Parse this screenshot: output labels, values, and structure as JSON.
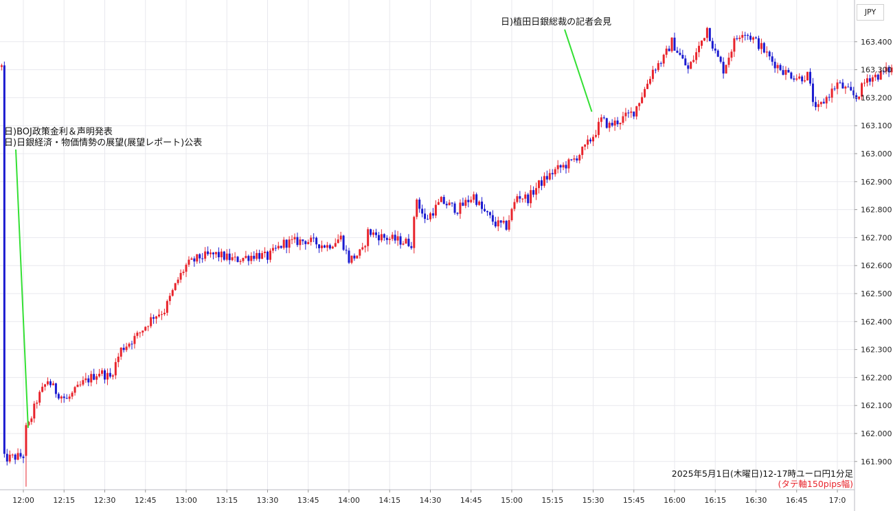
{
  "currency_label": "JPY",
  "caption": {
    "line1": "2025年5月1日(木曜日)12-17時ユーロ円1分足",
    "line2": "(タテ軸150pips幅)"
  },
  "chart_data": {
    "type": "candlestick",
    "x_ticks": [
      "12:00",
      "12:15",
      "12:30",
      "12:45",
      "13:00",
      "13:15",
      "13:30",
      "13:45",
      "14:00",
      "14:15",
      "14:30",
      "14:45",
      "15:00",
      "15:15",
      "15:30",
      "15:45",
      "16:00",
      "16:15",
      "16:30",
      "16:45",
      "17:0"
    ],
    "y_ticks": [
      "161.900",
      "162.000",
      "162.100",
      "162.200",
      "162.300",
      "162.400",
      "162.500",
      "162.600",
      "162.700",
      "162.800",
      "162.900",
      "163.000",
      "163.100",
      "163.200",
      "163.300",
      "163.400"
    ],
    "ylim": [
      161.8,
      163.55
    ],
    "x_range_minutes": [
      -8,
      300
    ],
    "grid": true,
    "colors": {
      "up": "#e8242c",
      "down": "#1a1ad0",
      "grid": "#e8e8ee",
      "annotation_line": "#33e033"
    },
    "price_path": [
      [
        -7,
        161.91
      ],
      [
        0,
        161.92
      ],
      [
        2,
        162.03
      ],
      [
        5,
        162.12
      ],
      [
        9,
        162.19
      ],
      [
        12,
        162.15
      ],
      [
        16,
        162.12
      ],
      [
        22,
        162.18
      ],
      [
        28,
        162.22
      ],
      [
        32,
        162.2
      ],
      [
        36,
        162.3
      ],
      [
        42,
        162.35
      ],
      [
        48,
        162.42
      ],
      [
        52,
        162.44
      ],
      [
        57,
        162.55
      ],
      [
        60,
        162.6
      ],
      [
        65,
        162.63
      ],
      [
        71,
        162.64
      ],
      [
        78,
        162.62
      ],
      [
        86,
        162.64
      ],
      [
        90,
        162.63
      ],
      [
        96,
        162.68
      ],
      [
        104,
        162.69
      ],
      [
        112,
        162.67
      ],
      [
        117,
        162.7
      ],
      [
        120,
        162.62
      ],
      [
        125,
        162.65
      ],
      [
        127,
        162.72
      ],
      [
        133,
        162.7
      ],
      [
        138,
        162.69
      ],
      [
        143,
        162.68
      ],
      [
        145,
        162.84
      ],
      [
        148,
        162.76
      ],
      [
        154,
        162.83
      ],
      [
        160,
        162.8
      ],
      [
        166,
        162.85
      ],
      [
        169,
        162.8
      ],
      [
        174,
        162.75
      ],
      [
        178,
        162.74
      ],
      [
        182,
        162.85
      ],
      [
        186,
        162.84
      ],
      [
        190,
        162.89
      ],
      [
        196,
        162.94
      ],
      [
        202,
        162.97
      ],
      [
        207,
        163.02
      ],
      [
        211,
        163.08
      ],
      [
        213,
        163.12
      ],
      [
        216,
        163.1
      ],
      [
        220,
        163.12
      ],
      [
        225,
        163.15
      ],
      [
        229,
        163.23
      ],
      [
        232,
        163.3
      ],
      [
        236,
        163.34
      ],
      [
        239,
        163.4
      ],
      [
        242,
        163.35
      ],
      [
        245,
        163.3
      ],
      [
        249,
        163.38
      ],
      [
        252,
        163.45
      ],
      [
        255,
        163.36
      ],
      [
        258,
        163.3
      ],
      [
        262,
        163.4
      ],
      [
        265,
        163.44
      ],
      [
        269,
        163.41
      ],
      [
        272,
        163.38
      ],
      [
        276,
        163.33
      ],
      [
        281,
        163.29
      ],
      [
        286,
        163.27
      ],
      [
        289,
        163.28
      ],
      [
        292,
        163.15
      ],
      [
        296,
        163.2
      ],
      [
        300,
        163.25
      ],
      [
        303,
        163.23
      ],
      [
        307,
        163.2
      ],
      [
        311,
        163.27
      ],
      [
        315,
        163.28
      ],
      [
        319,
        163.3
      ],
      [
        325,
        163.31
      ]
    ],
    "annotations": [
      {
        "lines": [
          "日)BOJ政策金利＆声明発表",
          "日)日銀経済・物価情勢の展望(展望レポート)公表"
        ],
        "time_min": 1
      },
      {
        "lines": [
          "日)植田日銀総裁の記者会見"
        ],
        "time_min": 210
      }
    ]
  }
}
